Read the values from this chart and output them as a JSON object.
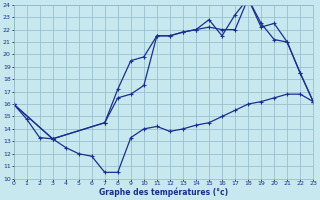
{
  "bg_color": "#c8e8f0",
  "grid_color": "#90b8c8",
  "line_color": "#1a3090",
  "xlabel": "Graphe des températures (°c)",
  "ylim": [
    10,
    24
  ],
  "xlim": [
    0,
    23
  ],
  "yticks": [
    10,
    11,
    12,
    13,
    14,
    15,
    16,
    17,
    18,
    19,
    20,
    21,
    22,
    23,
    24
  ],
  "xticks": [
    0,
    1,
    2,
    3,
    4,
    5,
    6,
    7,
    8,
    9,
    10,
    11,
    12,
    13,
    14,
    15,
    16,
    17,
    18,
    19,
    20,
    21,
    22,
    23
  ],
  "line_bot_x": [
    0,
    1,
    2,
    3,
    4,
    5,
    6,
    7,
    8,
    9,
    10,
    11,
    12,
    13,
    14,
    15,
    16,
    17,
    18,
    19,
    20,
    21,
    22,
    23
  ],
  "line_bot_y": [
    16.0,
    14.8,
    13.3,
    13.2,
    12.5,
    12.0,
    11.8,
    10.5,
    10.5,
    13.3,
    14.0,
    14.2,
    13.8,
    14.0,
    14.3,
    14.5,
    15.0,
    15.5,
    16.0,
    16.2,
    16.5,
    16.8,
    16.8,
    16.2
  ],
  "line_mid_x": [
    0,
    3,
    7,
    8,
    9,
    10,
    11,
    12,
    13,
    14,
    15,
    16,
    17,
    18,
    19,
    20,
    21,
    22,
    23
  ],
  "line_mid_y": [
    16.0,
    13.2,
    14.5,
    16.5,
    16.8,
    17.5,
    21.5,
    21.5,
    21.8,
    22.0,
    22.2,
    22.0,
    22.0,
    24.5,
    22.2,
    22.5,
    21.0,
    18.5,
    16.2
  ],
  "line_top_x": [
    0,
    3,
    7,
    8,
    9,
    10,
    11,
    12,
    13,
    14,
    15,
    16,
    17,
    18,
    19,
    20,
    21,
    22,
    23
  ],
  "line_top_y": [
    16.0,
    13.2,
    14.5,
    17.2,
    19.5,
    19.8,
    21.5,
    21.5,
    21.8,
    22.0,
    22.8,
    21.5,
    23.2,
    24.5,
    22.5,
    21.2,
    21.0,
    18.5,
    16.2
  ]
}
